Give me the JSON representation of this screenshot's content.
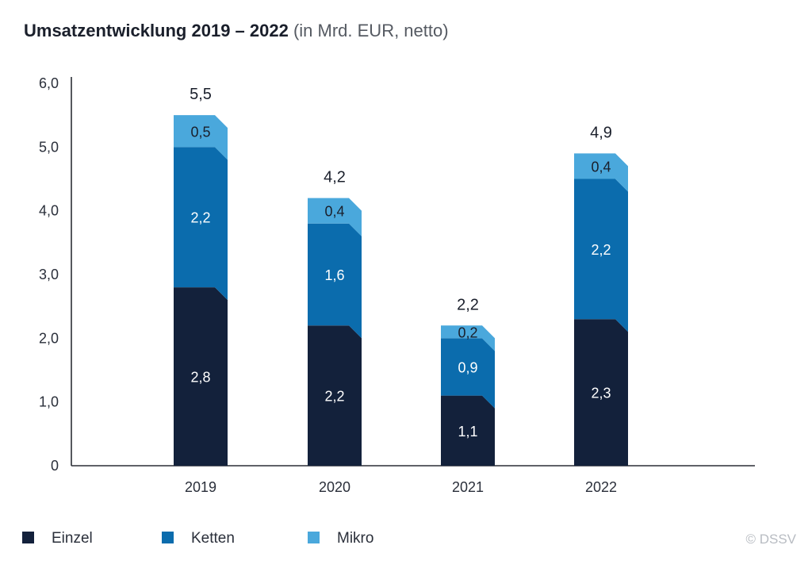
{
  "title": {
    "bold": "Umsatzentwicklung 2019 – 2022",
    "light": "(in Mrd. EUR, netto)"
  },
  "copyright": "© DSSV",
  "chart_data": {
    "type": "bar",
    "stacked": true,
    "title": "Umsatzentwicklung 2019 – 2022 (in Mrd. EUR, netto)",
    "categories": [
      "2019",
      "2020",
      "2021",
      "2022"
    ],
    "series": [
      {
        "name": "Einzel",
        "color": "#13213b",
        "values": [
          2.8,
          2.2,
          1.1,
          2.3
        ],
        "labels": [
          "2,8",
          "2,2",
          "1,1",
          "2,3"
        ]
      },
      {
        "name": "Ketten",
        "color": "#0b6cad",
        "values": [
          2.2,
          1.6,
          0.9,
          2.2
        ],
        "labels": [
          "2,2",
          "1,6",
          "0,9",
          "2,2"
        ]
      },
      {
        "name": "Mikro",
        "color": "#4aa8dc",
        "values": [
          0.5,
          0.4,
          0.2,
          0.4
        ],
        "labels": [
          "0,5",
          "0,4",
          "0,2",
          "0,4"
        ]
      }
    ],
    "totals": [
      5.5,
      4.2,
      2.2,
      4.9
    ],
    "total_labels": [
      "5,5",
      "4,2",
      "2,2",
      "4,9"
    ],
    "yticks": [
      0,
      1,
      2,
      3,
      4,
      5,
      6
    ],
    "ytick_labels": [
      "0",
      "1,0",
      "2,0",
      "3,0",
      "4,0",
      "5,0",
      "6,0"
    ],
    "ylim": [
      0,
      6
    ],
    "grid": false,
    "legend": "bottom-left"
  }
}
